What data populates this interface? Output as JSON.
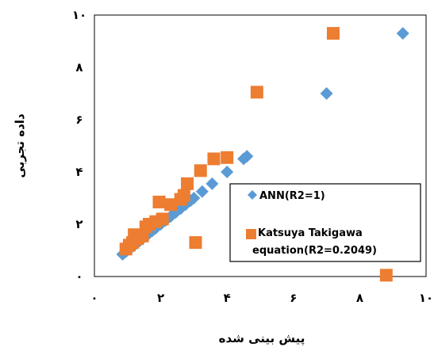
{
  "chart_data": {
    "type": "scatter",
    "title": "",
    "xlabel": "پیش بینی شده",
    "ylabel": "داده تجربی",
    "xlim": [
      0,
      10
    ],
    "ylim": [
      0,
      10
    ],
    "x_ticks": [
      0,
      2,
      4,
      6,
      8,
      10
    ],
    "y_ticks": [
      0,
      2,
      4,
      6,
      8,
      10
    ],
    "x_tick_labels": [
      "۰",
      "۲",
      "۴",
      "۶",
      "۸",
      "۱۰"
    ],
    "y_tick_labels": [
      "۰",
      "۲",
      "۴",
      "۶",
      "۸",
      "۱۰"
    ],
    "grid": false,
    "legend_position": "bottom-right",
    "series": [
      {
        "name": "ANN(R2=1)",
        "marker": "diamond",
        "color": "#5B9BD5",
        "points": [
          [
            0.85,
            0.85
          ],
          [
            0.95,
            0.95
          ],
          [
            1.05,
            1.05
          ],
          [
            1.15,
            1.15
          ],
          [
            1.25,
            1.25
          ],
          [
            1.35,
            1.35
          ],
          [
            1.45,
            1.45
          ],
          [
            1.55,
            1.55
          ],
          [
            1.65,
            1.65
          ],
          [
            1.75,
            1.75
          ],
          [
            1.85,
            1.85
          ],
          [
            2.0,
            2.0
          ],
          [
            2.15,
            2.15
          ],
          [
            2.3,
            2.3
          ],
          [
            2.45,
            2.45
          ],
          [
            2.6,
            2.6
          ],
          [
            2.75,
            2.75
          ],
          [
            2.9,
            2.9
          ],
          [
            3.0,
            3.0
          ],
          [
            3.25,
            3.25
          ],
          [
            3.55,
            3.55
          ],
          [
            4.0,
            4.0
          ],
          [
            4.5,
            4.5
          ],
          [
            4.6,
            4.6
          ],
          [
            7.0,
            7.0
          ],
          [
            9.3,
            9.3
          ]
        ]
      },
      {
        "name": "Katsuya Takigawa equation(R2=0.2049)",
        "marker": "square",
        "color": "#ED7D31",
        "points": [
          [
            0.95,
            1.05
          ],
          [
            1.05,
            1.2
          ],
          [
            1.15,
            1.3
          ],
          [
            1.2,
            1.6
          ],
          [
            1.3,
            1.45
          ],
          [
            1.45,
            1.55
          ],
          [
            1.55,
            1.9
          ],
          [
            1.65,
            2.0
          ],
          [
            1.85,
            2.1
          ],
          [
            1.95,
            2.85
          ],
          [
            2.05,
            2.2
          ],
          [
            2.3,
            2.75
          ],
          [
            2.6,
            2.95
          ],
          [
            2.7,
            3.1
          ],
          [
            2.8,
            3.55
          ],
          [
            3.05,
            1.3
          ],
          [
            3.2,
            4.05
          ],
          [
            3.6,
            4.5
          ],
          [
            4.0,
            4.55
          ],
          [
            4.85,
            2.05
          ],
          [
            4.9,
            7.05
          ],
          [
            7.2,
            9.3
          ],
          [
            8.8,
            0.05
          ]
        ]
      }
    ]
  }
}
